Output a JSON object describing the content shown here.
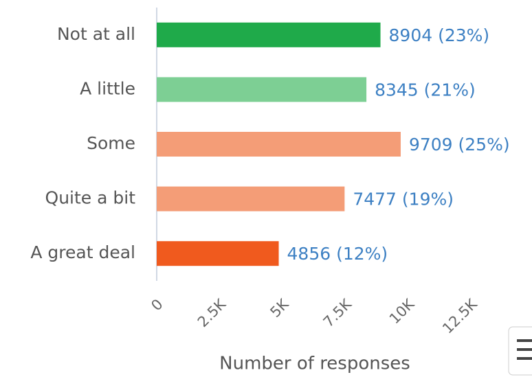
{
  "chart_data": {
    "type": "hbar",
    "x_label": "Number of responses",
    "categories": [
      "Not at all",
      "A little",
      "Some",
      "Quite a bit",
      "A great deal"
    ],
    "values": [
      8904,
      8345,
      9709,
      7477,
      4856
    ],
    "value_labels": [
      "8904 (23%)",
      "8345 (21%)",
      "9709 (25%)",
      "7477 (19%)",
      "4856 (12%)"
    ],
    "colors": [
      "#1faa4a",
      "#7dcf94",
      "#f49d77",
      "#f49d77",
      "#f05a1e"
    ],
    "xlim": [
      0,
      12500
    ],
    "xticks": [
      0,
      {
        "value": 2500,
        "label": "2.5K"
      },
      {
        "value": 5000,
        "label": "5K"
      },
      {
        "value": 7500,
        "label": "7.5K"
      },
      {
        "value": 10000,
        "label": "10K"
      },
      {
        "value": 12500,
        "label": "12.5K"
      }
    ]
  }
}
